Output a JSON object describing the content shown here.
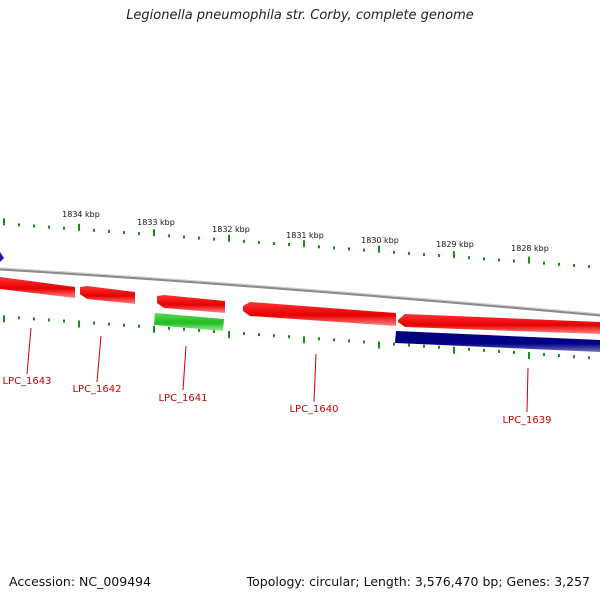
{
  "title": "Legionella pneumophila str. Corby, complete genome",
  "footer": {
    "accession": "Accession: NC_009494",
    "summary": "Topology: circular; Length: 3,576,470 bp; Genes: 3,257"
  },
  "colors": {
    "backbone": "#8c8c8c",
    "forward_gene": "#0b0b8c",
    "reverse_gene": "#ee1111",
    "rna_gene": "#33cc33",
    "tick": "#1a8c1a",
    "gene_label": "#cc0000",
    "scale_label": "#111111"
  },
  "chart_data": {
    "type": "diagram",
    "scale_labels": [
      "1834 kbp",
      "1833 kbp",
      "1832 kbp",
      "1831 kbp",
      "1830 kbp",
      "1829 kbp",
      "1828 kbp"
    ],
    "genes": [
      {
        "label": "LPC_1643",
        "strand": "reverse"
      },
      {
        "label": "LPC_1642",
        "strand": "reverse"
      },
      {
        "label": "LPC_1641",
        "strand": "reverse"
      },
      {
        "label": "LPC_1640",
        "strand": "reverse"
      },
      {
        "label": "LPC_1639",
        "strand": "forward"
      }
    ]
  }
}
